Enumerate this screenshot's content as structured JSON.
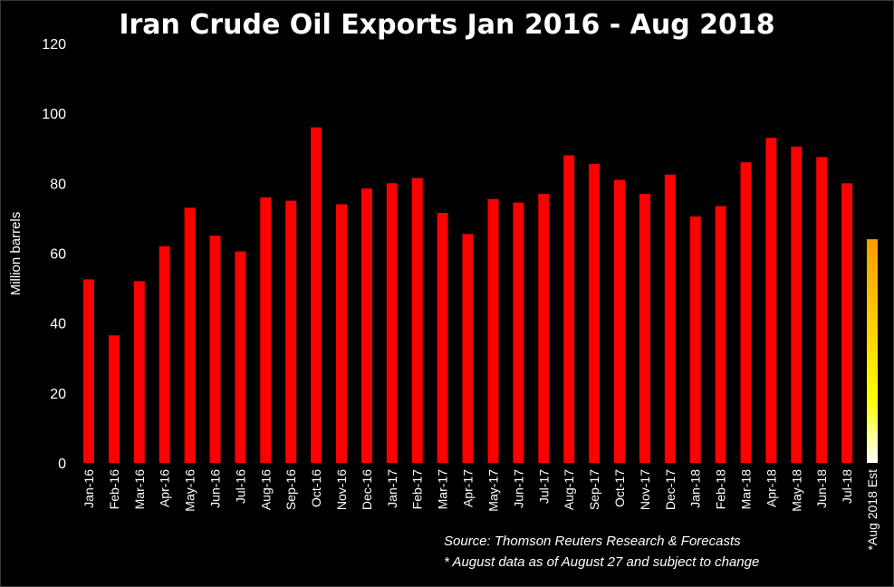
{
  "chart_data": {
    "type": "bar",
    "title": "Iran Crude Oil Exports Jan 2016 - Aug 2018",
    "xlabel": "",
    "ylabel": "Million barrels",
    "ylim": [
      0,
      120
    ],
    "yticks": [
      0,
      20,
      40,
      60,
      80,
      100,
      120
    ],
    "grid": false,
    "categories": [
      "Jan-16",
      "Feb-16",
      "Mar-16",
      "Apr-16",
      "May-16",
      "Jun-16",
      "Jul-16",
      "Aug-16",
      "Sep-16",
      "Oct-16",
      "Nov-16",
      "Dec-16",
      "Jan-17",
      "Feb-17",
      "Mar-17",
      "Apr-17",
      "May-17",
      "Jun-17",
      "Jul-17",
      "Aug-17",
      "Sep-17",
      "Oct-17",
      "Nov-17",
      "Dec-17",
      "Jan-18",
      "Feb-18",
      "Mar-18",
      "Apr-18",
      "May-18",
      "Jun-18",
      "Jul-18",
      "*Aug 2018 Est"
    ],
    "values": [
      52.5,
      36.5,
      52,
      62,
      73,
      65,
      60.5,
      76,
      75,
      96,
      74,
      78.5,
      80,
      81.5,
      71.5,
      65.5,
      75.5,
      74.5,
      77,
      88,
      85.5,
      81,
      77,
      82.5,
      70.5,
      73.5,
      86,
      93,
      90.5,
      87.5,
      80,
      64
    ],
    "colors": {
      "bar": "#ff0000",
      "estimate_gradient": [
        "#ff9900",
        "#ffff00",
        "#ffffff"
      ],
      "background": "#000000"
    },
    "annotations": [
      "Source: Thomson Reuters Research & Forecasts",
      "* August data as of August 27 and subject to change"
    ]
  }
}
